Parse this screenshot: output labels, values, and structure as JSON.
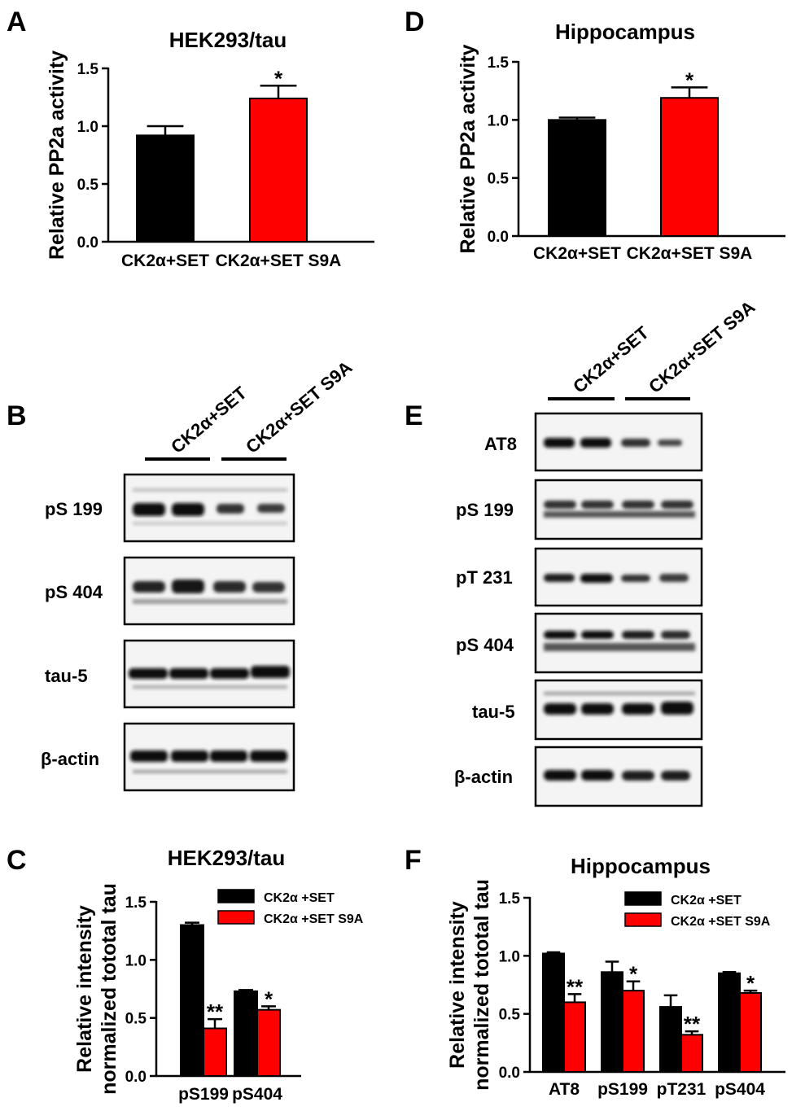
{
  "colors": {
    "ck2_set": "#000000",
    "ck2_set_s9a": "#ff0000",
    "axis": "#000000"
  },
  "panels": {
    "A": {
      "letter": "A"
    },
    "B": {
      "letter": "B",
      "lane_groups": [
        "CK2α+SET",
        "CK2α+SET S9A"
      ],
      "blots": [
        "pS 199",
        "pS 404",
        "tau-5",
        "β-actin"
      ]
    },
    "C": {
      "letter": "C"
    },
    "D": {
      "letter": "D"
    },
    "E": {
      "letter": "E",
      "lane_groups": [
        "CK2α+SET",
        "CK2α+SET S9A"
      ],
      "blots": [
        "AT8",
        "pS 199",
        "pT 231",
        "pS 404",
        "tau-5",
        "β-actin"
      ]
    },
    "F": {
      "letter": "F"
    }
  },
  "chart_data": [
    {
      "id": "A",
      "type": "bar",
      "title": "HEK293/tau",
      "ylabel": "Relative PP2a activity",
      "ylim": [
        0,
        1.5
      ],
      "yticks": [
        "0.0",
        "0.5",
        "1.0",
        "1.5"
      ],
      "categories": [
        "CK2α+SET",
        "CK2α+SET S9A"
      ],
      "values": [
        0.92,
        1.24
      ],
      "errors": [
        0.08,
        0.11
      ],
      "significance": [
        "",
        "*"
      ]
    },
    {
      "id": "D",
      "type": "bar",
      "title": "Hippocampus",
      "ylabel": "Relative PP2a activity",
      "ylim": [
        0,
        1.5
      ],
      "yticks": [
        "0.0",
        "0.5",
        "1.0",
        "1.5"
      ],
      "categories": [
        "CK2α+SET",
        "CK2α+SET S9A"
      ],
      "values": [
        1.0,
        1.19
      ],
      "errors": [
        0.02,
        0.09
      ],
      "significance": [
        "",
        "*"
      ]
    },
    {
      "id": "C",
      "type": "bar",
      "title": "HEK293/tau",
      "ylabel": [
        "Relative intensity",
        "normalized tototal tau"
      ],
      "ylim": [
        0,
        1.5
      ],
      "yticks": [
        "0.0",
        "0.5",
        "1.0",
        "1.5"
      ],
      "categories": [
        "pS199",
        "pS404"
      ],
      "legend_position": "top-right",
      "series": [
        {
          "name": "CK2α +SET",
          "values": [
            1.3,
            0.73
          ],
          "errors": [
            0.02,
            0.01
          ],
          "significance": [
            "",
            ""
          ]
        },
        {
          "name": "CK2α +SET S9A",
          "values": [
            0.41,
            0.57
          ],
          "errors": [
            0.08,
            0.03
          ],
          "significance": [
            "**",
            "*"
          ]
        }
      ]
    },
    {
      "id": "F",
      "type": "bar",
      "title": "Hippocampus",
      "ylabel": [
        "Relative intensity",
        "normalized tototal tau"
      ],
      "ylim": [
        0,
        1.5
      ],
      "yticks": [
        "0.0",
        "0.5",
        "1.0",
        "1.5"
      ],
      "categories": [
        "AT8",
        "pS199",
        "pT231",
        "pS404"
      ],
      "legend_position": "top-right",
      "series": [
        {
          "name": "CK2α +SET",
          "values": [
            1.02,
            0.86,
            0.56,
            0.85
          ],
          "errors": [
            0.01,
            0.09,
            0.1,
            0.01
          ],
          "significance": [
            "",
            "",
            "",
            ""
          ]
        },
        {
          "name": "CK2α +SET S9A",
          "values": [
            0.6,
            0.7,
            0.32,
            0.68
          ],
          "errors": [
            0.07,
            0.08,
            0.03,
            0.02
          ],
          "significance": [
            "**",
            "*",
            "**",
            "*"
          ]
        }
      ]
    }
  ]
}
